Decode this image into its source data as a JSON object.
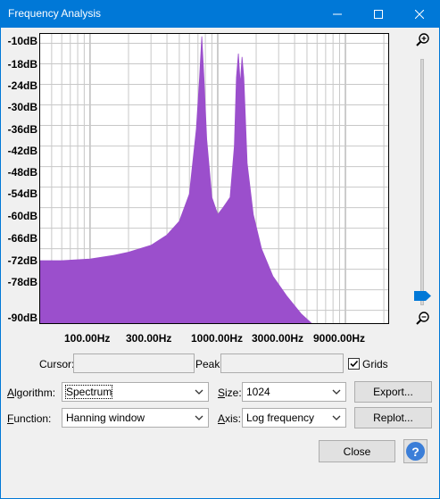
{
  "window": {
    "title": "Frequency Analysis"
  },
  "colors": {
    "accent": "#0078d7",
    "spectrum_fill": "#9b4fcc",
    "slider_thumb": "#0078d7"
  },
  "chart_data": {
    "type": "area",
    "xlabel": "",
    "ylabel": "",
    "x_scale": "log",
    "xlim": [
      40,
      22000
    ],
    "ylim": [
      -92,
      -7
    ],
    "grid": true,
    "y_ticks": [
      "-10dB",
      "-18dB",
      "-24dB",
      "-30dB",
      "-36dB",
      "-42dB",
      "-48dB",
      "-54dB",
      "-60dB",
      "-66dB",
      "-72dB",
      "-78dB",
      "-90dB"
    ],
    "x_ticks": [
      "100.00Hz",
      "300.00Hz",
      "1000.00Hz",
      "3000.00Hz",
      "9000.00Hz"
    ],
    "series": [
      {
        "points": [
          [
            40,
            -73.5
          ],
          [
            60,
            -73.5
          ],
          [
            100,
            -73
          ],
          [
            150,
            -72
          ],
          [
            200,
            -71
          ],
          [
            300,
            -69
          ],
          [
            400,
            -66
          ],
          [
            500,
            -62
          ],
          [
            600,
            -54
          ],
          [
            680,
            -35
          ],
          [
            720,
            -20
          ],
          [
            750,
            -8
          ],
          [
            780,
            -20
          ],
          [
            820,
            -38
          ],
          [
            900,
            -55
          ],
          [
            1000,
            -60
          ],
          [
            1100,
            -58
          ],
          [
            1250,
            -55
          ],
          [
            1350,
            -40
          ],
          [
            1400,
            -20
          ],
          [
            1450,
            -13
          ],
          [
            1500,
            -22
          ],
          [
            1550,
            -14
          ],
          [
            1600,
            -20
          ],
          [
            1700,
            -45
          ],
          [
            1900,
            -60
          ],
          [
            2200,
            -70
          ],
          [
            2700,
            -78
          ],
          [
            3500,
            -84
          ],
          [
            4500,
            -89
          ],
          [
            5500,
            -92
          ]
        ]
      }
    ]
  },
  "controls": {
    "cursor_label": "Cursor:",
    "cursor_value": "",
    "peak_label": "Peak:",
    "peak_value": "",
    "grids_label": "Grids",
    "grids_checked": true,
    "algorithm_label": "Algorithm:",
    "algorithm_value": "Spectrum",
    "size_label": "Size:",
    "size_value": "1024",
    "export_label": "Export...",
    "function_label": "Function:",
    "function_value": "Hanning window",
    "axis_label": "Axis:",
    "axis_value": "Log frequency",
    "replot_label": "Replot...",
    "close_label": "Close",
    "help_label": "?"
  },
  "zoom": {
    "level": 0.0
  }
}
